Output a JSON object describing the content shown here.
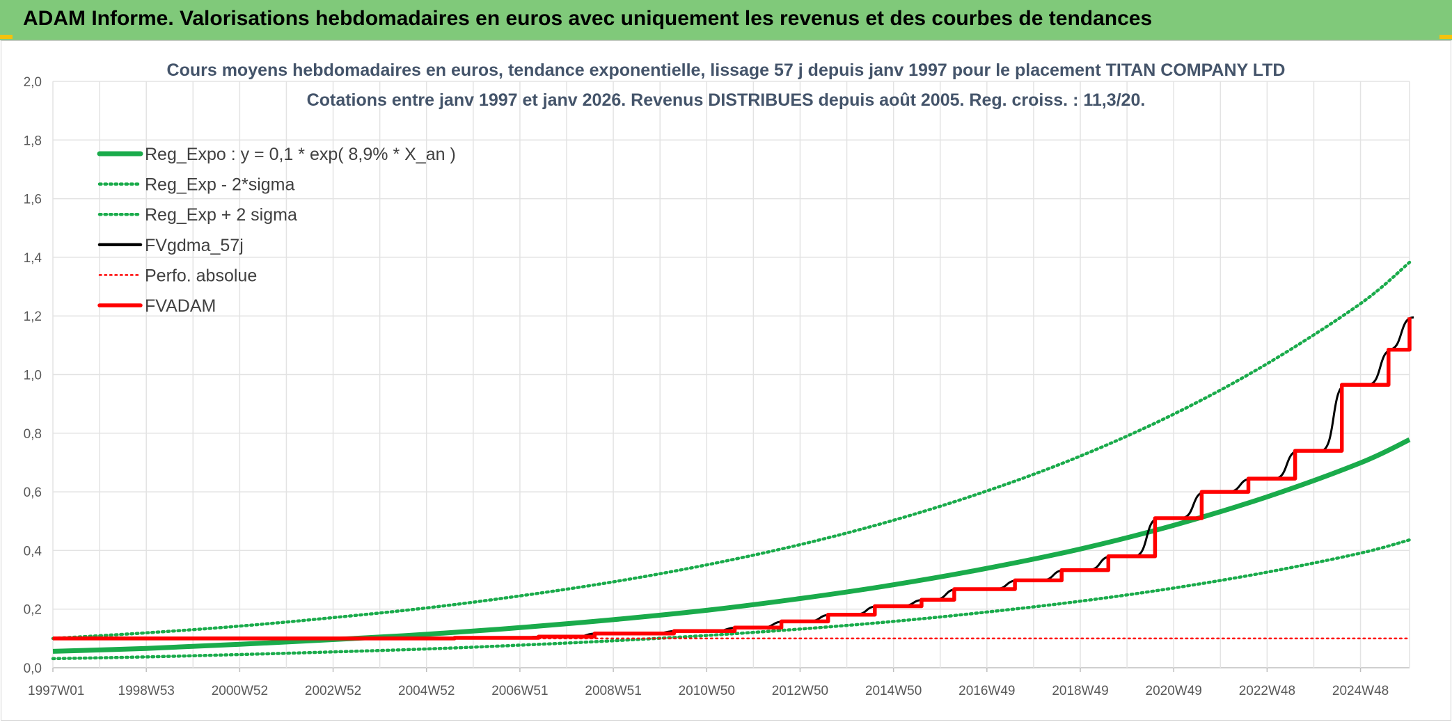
{
  "header": {
    "title": "ADAM Informe. Valorisations hebdomadaires en euros avec uniquement les revenus et des courbes de tendances"
  },
  "chart_data": {
    "type": "line",
    "subtitle_lines": [
      "Cours moyens hebdomadaires en euros, tendance exponentielle, lissage 57 j depuis janv 1997 pour le placement TITAN COMPANY LTD",
      "Cotations entre janv 1997 et janv 2026. Revenus DISTRIBUES depuis août 2005. Reg. croiss. : 11,3/20."
    ],
    "ylim": [
      0,
      2
    ],
    "xlim": [
      1997.0,
      2026.05
    ],
    "grid": true,
    "legend_position": "top-left",
    "y_ticks": [
      "0,0",
      "0,2",
      "0,4",
      "0,6",
      "0,8",
      "1,0",
      "1,2",
      "1,4",
      "1,6",
      "1,8",
      "2,0"
    ],
    "x_ticks": [
      {
        "label": "1997W01",
        "x": 1997.0
      },
      {
        "label": "1998W53",
        "x": 1999.0
      },
      {
        "label": "2000W52",
        "x": 2001.0
      },
      {
        "label": "2002W52",
        "x": 2003.0
      },
      {
        "label": "2004W52",
        "x": 2005.0
      },
      {
        "label": "2006W51",
        "x": 2007.0
      },
      {
        "label": "2008W51",
        "x": 2009.0
      },
      {
        "label": "2010W50",
        "x": 2011.0
      },
      {
        "label": "2012W50",
        "x": 2013.0
      },
      {
        "label": "2014W50",
        "x": 2015.0
      },
      {
        "label": "2016W49",
        "x": 2017.0
      },
      {
        "label": "2018W49",
        "x": 2019.0
      },
      {
        "label": "2020W49",
        "x": 2021.0
      },
      {
        "label": "2022W48",
        "x": 2023.0
      },
      {
        "label": "2024W48",
        "x": 2025.0
      }
    ],
    "series": [
      {
        "name": "Reg_Expo : y = 0,1 * exp( 8,9% *  X_an )",
        "color": "#1aab4b",
        "style": "solid-thick",
        "x": [
          1997.0,
          1999.0,
          2001.0,
          2003.0,
          2005.0,
          2007.0,
          2009.0,
          2011.0,
          2013.0,
          2015.0,
          2017.0,
          2019.0,
          2021.0,
          2023.0,
          2025.0,
          2026.05
        ],
        "y": [
          0.056,
          0.066,
          0.08,
          0.096,
          0.114,
          0.137,
          0.164,
          0.196,
          0.236,
          0.283,
          0.339,
          0.405,
          0.486,
          0.583,
          0.699,
          0.778
        ]
      },
      {
        "name": "Reg_Exp - 2*sigma",
        "color": "#1aab4b",
        "style": "dotted",
        "x": [
          1997.0,
          1999.0,
          2001.0,
          2003.0,
          2005.0,
          2007.0,
          2009.0,
          2011.0,
          2013.0,
          2015.0,
          2017.0,
          2019.0,
          2021.0,
          2023.0,
          2025.0,
          2026.05
        ],
        "y": [
          0.031,
          0.037,
          0.045,
          0.054,
          0.064,
          0.077,
          0.092,
          0.11,
          0.132,
          0.158,
          0.19,
          0.227,
          0.272,
          0.326,
          0.391,
          0.436
        ]
      },
      {
        "name": "Reg_Exp + 2 sigma",
        "color": "#1aab4b",
        "style": "dotted",
        "x": [
          1997.0,
          1999.0,
          2001.0,
          2003.0,
          2005.0,
          2007.0,
          2009.0,
          2011.0,
          2013.0,
          2015.0,
          2017.0,
          2019.0,
          2021.0,
          2023.0,
          2025.0,
          2026.05
        ],
        "y": [
          0.1,
          0.119,
          0.142,
          0.171,
          0.204,
          0.245,
          0.293,
          0.351,
          0.42,
          0.503,
          0.603,
          0.722,
          0.865,
          1.037,
          1.242,
          1.383
        ]
      },
      {
        "name": "FVgdma_57j",
        "color": "#000000",
        "style": "solid-smooth",
        "x": [
          1997.0,
          2005.6,
          2007.4,
          2008.6,
          2010.3,
          2011.6,
          2012.6,
          2013.6,
          2014.6,
          2015.6,
          2016.3,
          2017.6,
          2018.6,
          2019.6,
          2020.6,
          2021.6,
          2022.6,
          2023.6,
          2024.6,
          2025.6,
          2026.05
        ],
        "y": [
          0.1,
          0.102,
          0.106,
          0.117,
          0.125,
          0.137,
          0.158,
          0.181,
          0.21,
          0.232,
          0.268,
          0.298,
          0.333,
          0.38,
          0.51,
          0.6,
          0.645,
          0.74,
          0.965,
          1.085,
          1.195
        ]
      },
      {
        "name": "Perfo. absolue",
        "color": "#ff0000",
        "style": "dotted",
        "x": [
          1997.0,
          2026.05
        ],
        "y": [
          0.1,
          0.1
        ]
      },
      {
        "name": "FVADAM",
        "color": "#ff0000",
        "style": "step",
        "x": [
          1997.0,
          2005.6,
          2007.4,
          2008.6,
          2010.3,
          2011.6,
          2012.6,
          2013.6,
          2014.6,
          2015.6,
          2016.3,
          2017.6,
          2018.6,
          2019.6,
          2020.6,
          2021.6,
          2022.6,
          2023.6,
          2024.6,
          2025.6,
          2026.05
        ],
        "y": [
          0.1,
          0.102,
          0.106,
          0.117,
          0.125,
          0.137,
          0.158,
          0.181,
          0.21,
          0.232,
          0.268,
          0.298,
          0.333,
          0.38,
          0.51,
          0.6,
          0.645,
          0.74,
          0.965,
          1.085,
          1.195
        ]
      }
    ]
  }
}
